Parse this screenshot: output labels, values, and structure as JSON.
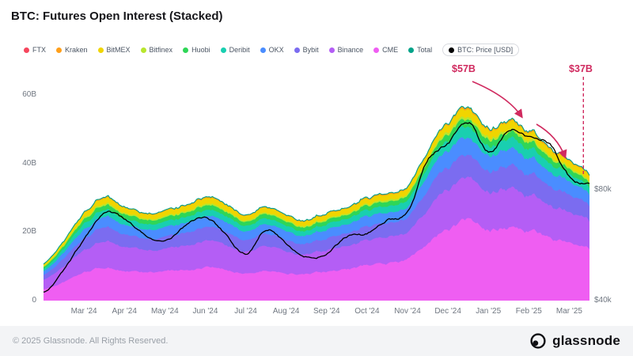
{
  "title": "BTC: Futures Open Interest (Stacked)",
  "legend": [
    {
      "label": "FTX",
      "color": "#f6465d",
      "boxed": false
    },
    {
      "label": "Kraken",
      "color": "#ff9f1a",
      "boxed": false
    },
    {
      "label": "BitMEX",
      "color": "#f0d500",
      "boxed": false
    },
    {
      "label": "Bitfinex",
      "color": "#b8e62e",
      "boxed": false
    },
    {
      "label": "Huobi",
      "color": "#2fd657",
      "boxed": false
    },
    {
      "label": "Deribit",
      "color": "#19cfb0",
      "boxed": false
    },
    {
      "label": "OKX",
      "color": "#4a8dff",
      "boxed": false
    },
    {
      "label": "Bybit",
      "color": "#7b6cf0",
      "boxed": false
    },
    {
      "label": "Binance",
      "color": "#b45ef5",
      "boxed": false
    },
    {
      "label": "CME",
      "color": "#ef5ef2",
      "boxed": false
    },
    {
      "label": "Total",
      "color": "#00a389",
      "boxed": false
    },
    {
      "label": "BTC: Price [USD]",
      "color": "#000000",
      "boxed": true
    }
  ],
  "annotations": {
    "peak_label": "$57B",
    "end_label": "$37B",
    "color": "#d02a5f"
  },
  "footer": {
    "copyright": "© 2025 Glassnode. All Rights Reserved.",
    "brand": "glassnode"
  },
  "chart_data": {
    "type": "area",
    "stacked": true,
    "title": "BTC: Futures Open Interest (Stacked)",
    "x_unit": "months since 2024-02-01, samples every 0.5 month",
    "x_range_months": [
      0,
      13.5
    ],
    "x_ticks": [
      {
        "label": "Mar '24",
        "t": 1
      },
      {
        "label": "Apr '24",
        "t": 2
      },
      {
        "label": "May '24",
        "t": 3
      },
      {
        "label": "Jun '24",
        "t": 4
      },
      {
        "label": "Jul '24",
        "t": 5
      },
      {
        "label": "Aug '24",
        "t": 6
      },
      {
        "label": "Sep '24",
        "t": 7
      },
      {
        "label": "Oct '24",
        "t": 8
      },
      {
        "label": "Nov '24",
        "t": 9
      },
      {
        "label": "Dec '24",
        "t": 10
      },
      {
        "label": "Jan '25",
        "t": 11
      },
      {
        "label": "Feb '25",
        "t": 12
      },
      {
        "label": "Mar '25",
        "t": 13
      }
    ],
    "y_ticks_left": [
      {
        "label": "0",
        "value": 0
      },
      {
        "label": "20B",
        "value": 20
      },
      {
        "label": "40B",
        "value": 40
      },
      {
        "label": "60B",
        "value": 60
      }
    ],
    "ylim_left_billion": [
      0,
      66
    ],
    "y_ticks_right": [
      {
        "label": "$40k",
        "value": 40
      },
      {
        "label": "$80k",
        "value": 80
      }
    ],
    "ylim_right_kusd": [
      40,
      121
    ],
    "grid": false,
    "legend_position": "top",
    "series_unit": "billion USD open interest, stacked bottom-to-top",
    "series": [
      {
        "name": "CME",
        "color": "#ef5ef2",
        "values": [
          3.3,
          5.4,
          8.1,
          9.6,
          8.7,
          8.1,
          8.4,
          9.0,
          9.6,
          9.0,
          8.1,
          8.7,
          8.3,
          7.7,
          8.3,
          8.9,
          10.2,
          10.9,
          11.9,
          17.5,
          20.7,
          22.8,
          20.4,
          21.6,
          20.0,
          18.4,
          16.4,
          14.8
        ]
      },
      {
        "name": "Binance",
        "color": "#b45ef5",
        "values": [
          2.7,
          4.4,
          6.4,
          7.6,
          6.9,
          6.4,
          6.6,
          7.1,
          7.6,
          7.1,
          6.4,
          6.9,
          6.4,
          5.9,
          6.4,
          6.6,
          7.3,
          7.5,
          7.9,
          10.6,
          11.9,
          12.5,
          11.2,
          11.9,
          11.0,
          10.1,
          9.0,
          8.1
        ]
      },
      {
        "name": "Bybit",
        "color": "#7b6cf0",
        "values": [
          1.4,
          2.3,
          3.4,
          4.0,
          3.6,
          3.4,
          3.5,
          3.8,
          4.0,
          3.8,
          3.4,
          3.6,
          3.4,
          3.1,
          3.4,
          3.5,
          3.9,
          4.0,
          4.2,
          5.6,
          6.4,
          6.8,
          6.1,
          6.5,
          6.0,
          5.5,
          4.9,
          4.4
        ]
      },
      {
        "name": "OKX",
        "color": "#4a8dff",
        "values": [
          1.1,
          1.8,
          2.6,
          3.1,
          2.8,
          2.6,
          2.7,
          2.9,
          3.1,
          2.9,
          2.6,
          2.8,
          2.6,
          2.4,
          2.6,
          2.7,
          3.0,
          3.0,
          3.1,
          4.2,
          4.8,
          5.1,
          4.6,
          4.9,
          4.5,
          4.1,
          3.7,
          3.3
        ]
      },
      {
        "name": "Deribit",
        "color": "#19cfb0",
        "values": [
          0.7,
          1.1,
          1.6,
          1.9,
          1.7,
          1.6,
          1.6,
          1.7,
          1.9,
          1.7,
          1.6,
          1.7,
          1.6,
          1.4,
          1.6,
          1.6,
          1.8,
          1.9,
          2.0,
          2.5,
          2.9,
          3.1,
          2.8,
          3.0,
          2.8,
          2.5,
          2.3,
          2.0
        ]
      },
      {
        "name": "Huobi",
        "color": "#2fd657",
        "values": [
          0.5,
          0.8,
          1.2,
          1.4,
          1.3,
          1.2,
          1.2,
          1.3,
          1.4,
          1.3,
          1.2,
          1.3,
          1.2,
          1.1,
          1.2,
          1.2,
          1.3,
          1.3,
          1.3,
          1.7,
          1.9,
          2.0,
          1.8,
          1.9,
          1.8,
          1.6,
          1.4,
          1.3
        ]
      },
      {
        "name": "Bitfinex",
        "color": "#b8e62e",
        "values": [
          0.2,
          0.3,
          0.4,
          0.5,
          0.4,
          0.4,
          0.4,
          0.4,
          0.5,
          0.4,
          0.4,
          0.4,
          0.4,
          0.4,
          0.4,
          0.4,
          0.4,
          0.5,
          0.5,
          0.6,
          0.7,
          0.7,
          0.7,
          0.7,
          0.7,
          0.6,
          0.5,
          0.5
        ]
      },
      {
        "name": "BitMEX",
        "color": "#f0d500",
        "values": [
          0.6,
          0.9,
          1.3,
          1.6,
          1.4,
          1.3,
          1.4,
          1.5,
          1.6,
          1.5,
          1.3,
          1.4,
          1.3,
          1.2,
          1.3,
          1.4,
          1.5,
          1.5,
          1.5,
          1.9,
          2.2,
          2.4,
          2.1,
          2.3,
          2.1,
          1.9,
          1.7,
          1.6
        ]
      },
      {
        "name": "Kraken",
        "color": "#ff9f1a",
        "values": [
          0.1,
          0.2,
          0.3,
          0.4,
          0.3,
          0.3,
          0.3,
          0.3,
          0.4,
          0.3,
          0.3,
          0.3,
          0.3,
          0.3,
          0.3,
          0.3,
          0.4,
          0.4,
          0.4,
          0.5,
          0.5,
          0.6,
          0.5,
          0.5,
          0.5,
          0.5,
          0.4,
          0.4
        ]
      },
      {
        "name": "FTX",
        "color": "#f6465d",
        "values": [
          0,
          0,
          0,
          0,
          0,
          0,
          0,
          0,
          0,
          0,
          0,
          0,
          0,
          0,
          0,
          0,
          0,
          0,
          0,
          0,
          0,
          0,
          0,
          0,
          0,
          0,
          0,
          0
        ]
      }
    ],
    "total_line": {
      "name": "Total",
      "color": "#00a389"
    },
    "price_line": {
      "name": "BTC: Price [USD]",
      "color": "#000000",
      "unit": "k USD",
      "values": [
        43,
        51,
        62,
        72,
        69,
        64,
        61,
        67,
        70,
        64,
        57,
        66,
        61,
        56,
        57,
        63,
        64,
        69,
        72,
        91,
        97,
        104,
        94,
        102,
        99,
        97,
        85,
        82
      ]
    }
  }
}
